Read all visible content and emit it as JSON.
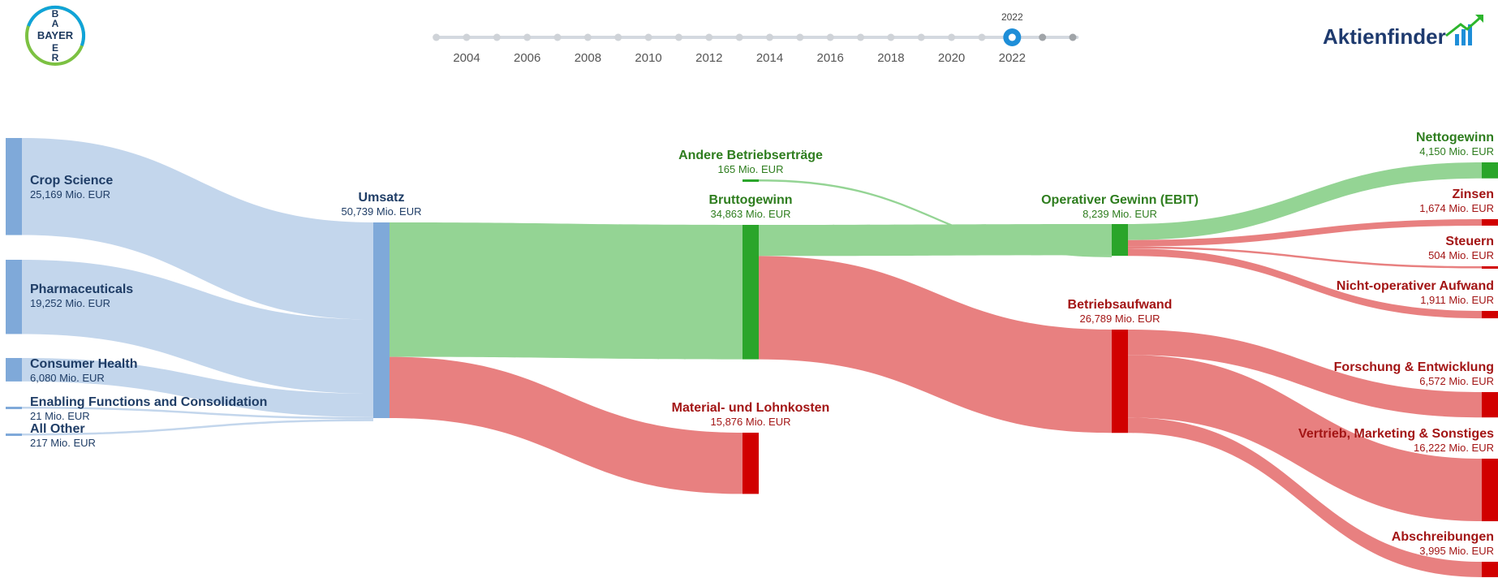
{
  "header": {
    "logo_left_text": "BAYER",
    "logo_right_text": "Aktienfinder"
  },
  "timeline": {
    "ticks": [
      "2004",
      "2006",
      "2008",
      "2010",
      "2012",
      "2014",
      "2016",
      "2018",
      "2020",
      "2022"
    ],
    "selected": "2022"
  },
  "colors": {
    "revenue": "#7FA9D9",
    "revenue_flow": "#C3D6EC",
    "label_revenue": "#1F3D66",
    "profit": "#2AA52A",
    "profit_flow": "#94D494",
    "label_profit": "#2E7D1E",
    "cost": "#D10000",
    "cost_flow": "#E88080",
    "label_cost": "#A31515",
    "timeline_active": "#1E8ED8"
  },
  "chart_data": {
    "type": "sankey",
    "unit": "Mio. EUR",
    "nodes": [
      {
        "id": "crop",
        "name": "Crop Science",
        "value": 25169,
        "value_label": "25,169 Mio. EUR",
        "kind": "revenue"
      },
      {
        "id": "pharma",
        "name": "Pharmaceuticals",
        "value": 19252,
        "value_label": "19,252 Mio. EUR",
        "kind": "revenue"
      },
      {
        "id": "consumer",
        "name": "Consumer Health",
        "value": 6080,
        "value_label": "6,080 Mio. EUR",
        "kind": "revenue"
      },
      {
        "id": "enabling",
        "name": "Enabling Functions and Consolidation",
        "value": 21,
        "value_label": "21 Mio. EUR",
        "kind": "revenue"
      },
      {
        "id": "allother",
        "name": "All Other",
        "value": 217,
        "value_label": "217 Mio. EUR",
        "kind": "revenue"
      },
      {
        "id": "umsatz",
        "name": "Umsatz",
        "value": 50739,
        "value_label": "50,739 Mio. EUR",
        "kind": "revenue"
      },
      {
        "id": "andere",
        "name": "Andere Betriebserträge",
        "value": 165,
        "value_label": "165 Mio. EUR",
        "kind": "profit"
      },
      {
        "id": "brutto",
        "name": "Bruttogewinn",
        "value": 34863,
        "value_label": "34,863 Mio. EUR",
        "kind": "profit"
      },
      {
        "id": "material",
        "name": "Material- und Lohnkosten",
        "value": 15876,
        "value_label": "15,876 Mio. EUR",
        "kind": "cost"
      },
      {
        "id": "ebit",
        "name": "Operativer Gewinn (EBIT)",
        "value": 8239,
        "value_label": "8,239 Mio. EUR",
        "kind": "profit"
      },
      {
        "id": "betrieb",
        "name": "Betriebsaufwand",
        "value": 26789,
        "value_label": "26,789 Mio. EUR",
        "kind": "cost"
      },
      {
        "id": "netto",
        "name": "Nettogewinn",
        "value": 4150,
        "value_label": "4,150 Mio. EUR",
        "kind": "profit"
      },
      {
        "id": "zinsen",
        "name": "Zinsen",
        "value": 1674,
        "value_label": "1,674 Mio. EUR",
        "kind": "cost"
      },
      {
        "id": "steuern",
        "name": "Steuern",
        "value": 504,
        "value_label": "504 Mio. EUR",
        "kind": "cost"
      },
      {
        "id": "nonop",
        "name": "Nicht-operativer Aufwand",
        "value": 1911,
        "value_label": "1,911 Mio. EUR",
        "kind": "cost"
      },
      {
        "id": "fue",
        "name": "Forschung & Entwicklung",
        "value": 6572,
        "value_label": "6,572 Mio. EUR",
        "kind": "cost"
      },
      {
        "id": "vms",
        "name": "Vertrieb, Marketing & Sonstiges",
        "value": 16222,
        "value_label": "16,222 Mio. EUR",
        "kind": "cost"
      },
      {
        "id": "abschr",
        "name": "Abschreibungen",
        "value": 3995,
        "value_label": "3,995 Mio. EUR",
        "kind": "cost"
      }
    ],
    "links": [
      {
        "source": "crop",
        "target": "umsatz",
        "value": 25169
      },
      {
        "source": "pharma",
        "target": "umsatz",
        "value": 19252
      },
      {
        "source": "consumer",
        "target": "umsatz",
        "value": 6080
      },
      {
        "source": "enabling",
        "target": "umsatz",
        "value": 21
      },
      {
        "source": "allother",
        "target": "umsatz",
        "value": 217
      },
      {
        "source": "umsatz",
        "target": "brutto",
        "value": 34863
      },
      {
        "source": "umsatz",
        "target": "material",
        "value": 15876
      },
      {
        "source": "brutto",
        "target": "ebit",
        "value": 8074
      },
      {
        "source": "andere",
        "target": "ebit",
        "value": 165
      },
      {
        "source": "brutto",
        "target": "betrieb",
        "value": 26789
      },
      {
        "source": "ebit",
        "target": "netto",
        "value": 4150
      },
      {
        "source": "ebit",
        "target": "zinsen",
        "value": 1674
      },
      {
        "source": "ebit",
        "target": "steuern",
        "value": 504
      },
      {
        "source": "ebit",
        "target": "nonop",
        "value": 1911
      },
      {
        "source": "betrieb",
        "target": "fue",
        "value": 6572
      },
      {
        "source": "betrieb",
        "target": "vms",
        "value": 16222
      },
      {
        "source": "betrieb",
        "target": "abschr",
        "value": 3995
      }
    ]
  }
}
